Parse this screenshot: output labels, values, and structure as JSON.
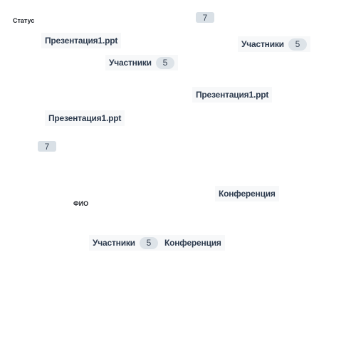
{
  "labels": {
    "status": "Статус",
    "fio": "ФИО"
  },
  "presentations": {
    "name": "Презентация1.ppt"
  },
  "participants": {
    "label": "Участники",
    "count": "5"
  },
  "conference": {
    "label": "Конференция"
  },
  "badges": {
    "count": "7"
  }
}
